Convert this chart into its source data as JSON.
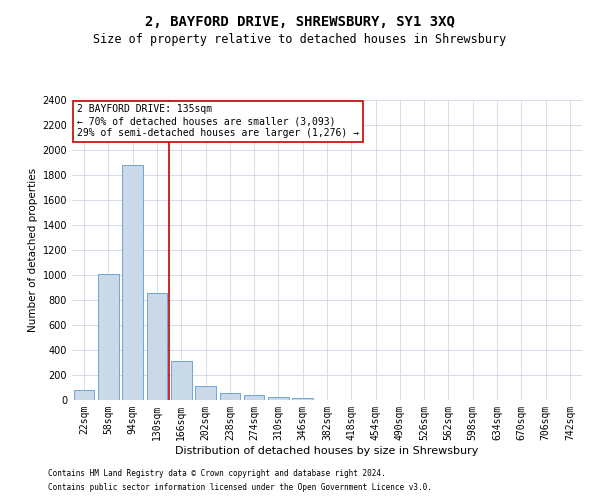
{
  "title": "2, BAYFORD DRIVE, SHREWSBURY, SY1 3XQ",
  "subtitle": "Size of property relative to detached houses in Shrewsbury",
  "xlabel": "Distribution of detached houses by size in Shrewsbury",
  "ylabel": "Number of detached properties",
  "categories": [
    "22sqm",
    "58sqm",
    "94sqm",
    "130sqm",
    "166sqm",
    "202sqm",
    "238sqm",
    "274sqm",
    "310sqm",
    "346sqm",
    "382sqm",
    "418sqm",
    "454sqm",
    "490sqm",
    "526sqm",
    "562sqm",
    "598sqm",
    "634sqm",
    "670sqm",
    "706sqm",
    "742sqm"
  ],
  "values": [
    80,
    1010,
    1880,
    855,
    310,
    115,
    55,
    40,
    25,
    15,
    0,
    0,
    0,
    0,
    0,
    0,
    0,
    0,
    0,
    0,
    0
  ],
  "bar_color": "#c9d9e8",
  "bar_edge_color": "#5b9bd5",
  "vline_x": 3.5,
  "vline_color": "#cc0000",
  "ylim": [
    0,
    2400
  ],
  "yticks": [
    0,
    200,
    400,
    600,
    800,
    1000,
    1200,
    1400,
    1600,
    1800,
    2000,
    2200,
    2400
  ],
  "annotation_title": "2 BAYFORD DRIVE: 135sqm",
  "annotation_line1": "← 70% of detached houses are smaller (3,093)",
  "annotation_line2": "29% of semi-detached houses are larger (1,276) →",
  "annotation_box_color": "#cc0000",
  "footer1": "Contains HM Land Registry data © Crown copyright and database right 2024.",
  "footer2": "Contains public sector information licensed under the Open Government Licence v3.0.",
  "bg_color": "#ffffff",
  "grid_color": "#d0d8e8",
  "title_fontsize": 10,
  "subtitle_fontsize": 8.5,
  "xlabel_fontsize": 8,
  "ylabel_fontsize": 7.5,
  "tick_fontsize": 7,
  "annotation_fontsize": 7,
  "footer_fontsize": 5.5
}
